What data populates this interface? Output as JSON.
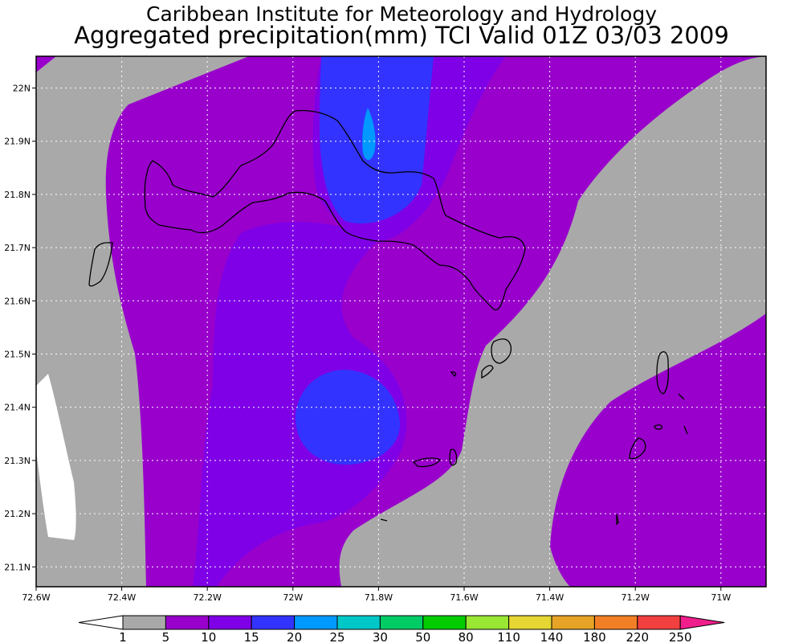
{
  "title": {
    "line1": "Caribbean Institute for Meteorology and Hydrology",
    "line2": "Aggregated precipitation(mm) TCI Valid 01Z 03/03 2009"
  },
  "axes": {
    "y_ticks": [
      {
        "value": 22.0,
        "label": "22N"
      },
      {
        "value": 21.9,
        "label": "21.9N"
      },
      {
        "value": 21.8,
        "label": "21.8N"
      },
      {
        "value": 21.7,
        "label": "21.7N"
      },
      {
        "value": 21.6,
        "label": "21.6N"
      },
      {
        "value": 21.5,
        "label": "21.5N"
      },
      {
        "value": 21.4,
        "label": "21.4N"
      },
      {
        "value": 21.3,
        "label": "21.3N"
      },
      {
        "value": 21.2,
        "label": "21.2N"
      },
      {
        "value": 21.1,
        "label": "21.1N"
      }
    ],
    "x_ticks": [
      {
        "value": -72.6,
        "label": "72.6W"
      },
      {
        "value": -72.4,
        "label": "72.4W"
      },
      {
        "value": -72.2,
        "label": "72.2W"
      },
      {
        "value": -72.0,
        "label": "72W"
      },
      {
        "value": -71.8,
        "label": "71.8W"
      },
      {
        "value": -71.6,
        "label": "71.6W"
      },
      {
        "value": -71.4,
        "label": "71.4W"
      },
      {
        "value": -71.2,
        "label": "71.2W"
      },
      {
        "value": -71.0,
        "label": "71W"
      }
    ],
    "grid": "dotted"
  },
  "legend": {
    "levels": [
      "1",
      "5",
      "10",
      "15",
      "20",
      "25",
      "30",
      "50",
      "80",
      "110",
      "140",
      "180",
      "220",
      "250"
    ],
    "colors": [
      "#ffffff",
      "#a9a9a9",
      "#9900cc",
      "#7f00e6",
      "#3333ff",
      "#0099ff",
      "#00c8c8",
      "#00cc66",
      "#00cc00",
      "#99e633",
      "#e6d633",
      "#e6a326",
      "#f27f26",
      "#f23f3f",
      "#f01e8c"
    ]
  },
  "map_colors": {
    "white": "#ffffff",
    "gray": "#a9a9a9",
    "purple": "#9900cc",
    "violet": "#7f00e6",
    "blue": "#3333ff",
    "cyan": "#0099ff",
    "coast": "#000000"
  },
  "chart_data": {
    "type": "heatmap",
    "title": "Aggregated precipitation(mm) TCI Valid 01Z 03/03 2009",
    "xlabel": "",
    "ylabel": "",
    "xlim": [
      "72.6W",
      "70.9W"
    ],
    "ylim": [
      "21.05N",
      "22.05N"
    ],
    "grid": true,
    "colorbar": {
      "position": "bottom",
      "bounds": [
        1,
        5,
        10,
        15,
        20,
        25,
        30,
        50,
        80,
        110,
        140,
        180,
        220,
        250
      ]
    },
    "regions": [
      {
        "range_mm": "1-5",
        "description_area": "west and east edges / southeast channel"
      },
      {
        "range_mm": "5-10",
        "description_area": "broad band over western and central areas"
      },
      {
        "range_mm": "10-15",
        "description_area": "central south lobe"
      },
      {
        "range_mm": "15-20",
        "description_area": "north central over Caicos islands and south center circle"
      },
      {
        "range_mm": "20-25",
        "description_area": "small spot near 71.85W 21.9N"
      },
      {
        "range_mm": "<1",
        "description_area": "far west near 72.55W 21.35N"
      }
    ]
  }
}
